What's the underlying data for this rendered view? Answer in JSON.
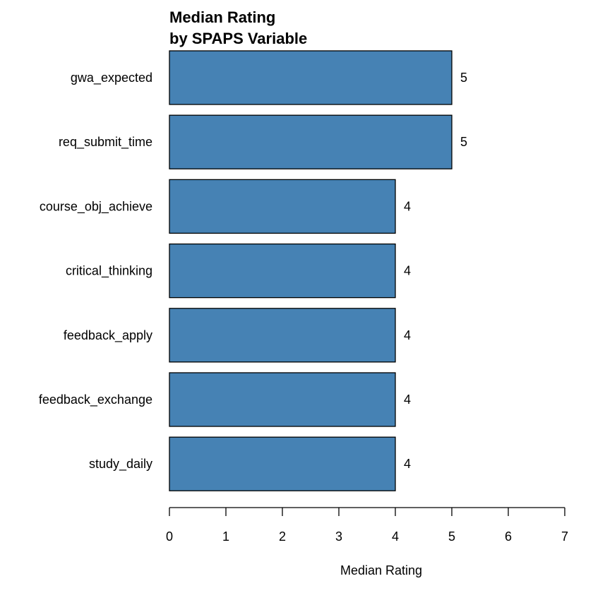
{
  "chart_data": {
    "type": "bar",
    "orientation": "horizontal",
    "title": [
      "Median Rating",
      "by SPAPS Variable"
    ],
    "xlabel": "Median Rating",
    "ylabel": "",
    "categories": [
      "gwa_expected",
      "req_submit_time",
      "course_obj_achieve",
      "critical_thinking",
      "feedback_apply",
      "feedback_exchange",
      "study_daily"
    ],
    "values": [
      5,
      5,
      4,
      4,
      4,
      4,
      4
    ],
    "data_labels": [
      "5",
      "5",
      "4",
      "4",
      "4",
      "4",
      "4"
    ],
    "xlim": [
      0,
      7
    ],
    "xticks": [
      "0",
      "1",
      "2",
      "3",
      "4",
      "5",
      "6",
      "7"
    ],
    "grid": false,
    "bar_color": "#4682B4",
    "bar_edge_color": "#000000"
  }
}
